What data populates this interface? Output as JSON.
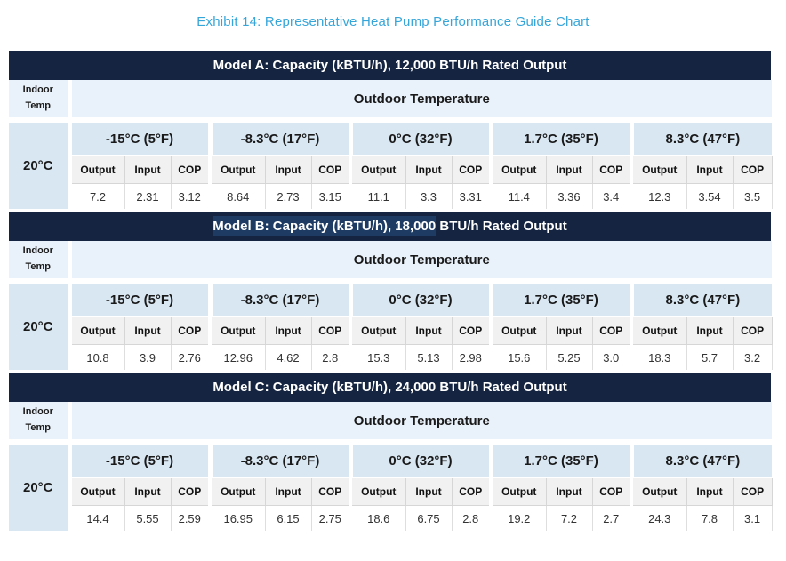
{
  "title": "Exhibit 14: Representative Heat Pump Performance Guide Chart",
  "colors": {
    "title_text": "#36a6da",
    "band_background": "#152440",
    "band_text": "#ffffff",
    "band_selection_highlight": "#1e3c63",
    "header_row_light_blue": "#e9f2fa",
    "temp_row_blue": "#d9e7f3",
    "metric_row_gray": "#f1f1f1"
  },
  "table_labels": {
    "indoor_temp_lines": [
      "Indoor",
      "Temp"
    ],
    "outdoor_header": "Outdoor Temperature",
    "indoor_value": "20°C",
    "metric_headers": [
      "Output",
      "Input",
      "COP"
    ],
    "outdoor_temps": [
      "-15°C (5°F)",
      "-8.3°C (17°F)",
      "0°C (32°F)",
      "1.7°C (35°F)",
      "8.3°C (47°F)"
    ]
  },
  "models": [
    {
      "title_highlight": "",
      "title_rest": "Model A: Capacity (kBTU/h), 12,000 BTU/h Rated Output",
      "values": [
        [
          "7.2",
          "2.31",
          "3.12"
        ],
        [
          "8.64",
          "2.73",
          "3.15"
        ],
        [
          "11.1",
          "3.3",
          "3.31"
        ],
        [
          "11.4",
          "3.36",
          "3.4"
        ],
        [
          "12.3",
          "3.54",
          "3.5"
        ]
      ]
    },
    {
      "title_highlight": "Model B: Capacity (kBTU/h), 18,000",
      "title_rest": " BTU/h Rated Output",
      "values": [
        [
          "10.8",
          "3.9",
          "2.76"
        ],
        [
          "12.96",
          "4.62",
          "2.8"
        ],
        [
          "15.3",
          "5.13",
          "2.98"
        ],
        [
          "15.6",
          "5.25",
          "3.0"
        ],
        [
          "18.3",
          "5.7",
          "3.2"
        ]
      ]
    },
    {
      "title_highlight": "",
      "title_rest": "Model C: Capacity (kBTU/h), 24,000 BTU/h Rated Output",
      "values": [
        [
          "14.4",
          "5.55",
          "2.59"
        ],
        [
          "16.95",
          "6.15",
          "2.75"
        ],
        [
          "18.6",
          "6.75",
          "2.8"
        ],
        [
          "19.2",
          "7.2",
          "2.7"
        ],
        [
          "24.3",
          "7.8",
          "3.1"
        ]
      ]
    }
  ]
}
